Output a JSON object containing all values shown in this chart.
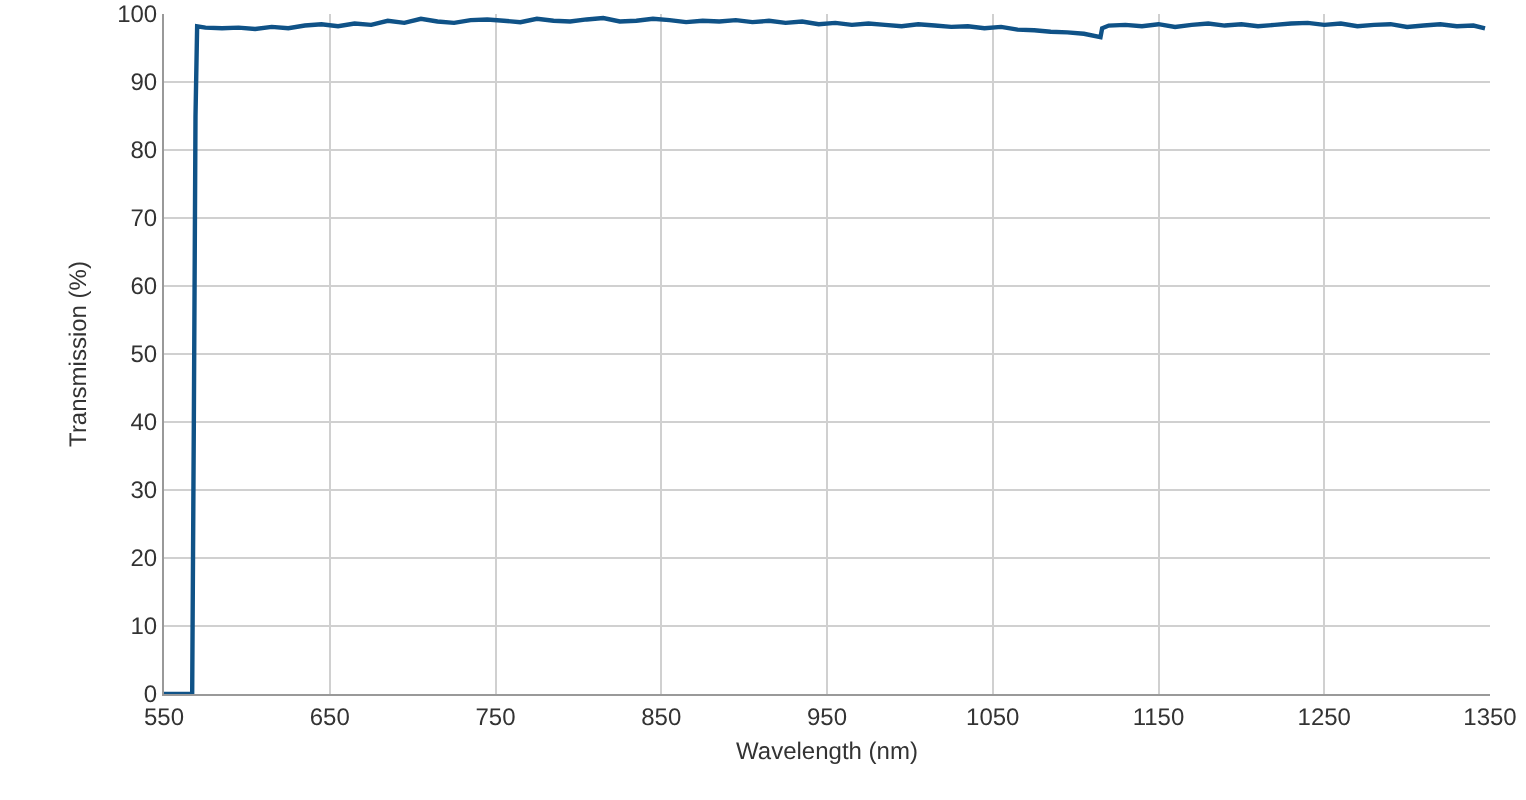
{
  "chart_data": {
    "type": "line",
    "xlabel": "Wavelength (nm)",
    "ylabel": "Transmission (%)",
    "x": [
      550,
      567,
      568,
      569,
      570,
      575,
      585,
      595,
      605,
      615,
      625,
      635,
      645,
      655,
      665,
      675,
      685,
      695,
      705,
      715,
      725,
      735,
      745,
      755,
      765,
      775,
      785,
      795,
      805,
      815,
      825,
      835,
      845,
      855,
      865,
      875,
      885,
      895,
      905,
      915,
      925,
      935,
      945,
      955,
      965,
      975,
      985,
      995,
      1005,
      1015,
      1025,
      1035,
      1045,
      1055,
      1065,
      1075,
      1085,
      1095,
      1105,
      1115,
      1116,
      1120,
      1130,
      1140,
      1150,
      1160,
      1170,
      1180,
      1190,
      1200,
      1210,
      1220,
      1230,
      1240,
      1250,
      1260,
      1270,
      1280,
      1290,
      1300,
      1310,
      1320,
      1330,
      1340,
      1347
    ],
    "series": [
      {
        "color": "#0f5287",
        "values": [
          0,
          0,
          40,
          85,
          98.2,
          98,
          97.9,
          98,
          97.8,
          98.1,
          97.9,
          98.3,
          98.5,
          98.2,
          98.6,
          98.4,
          99,
          98.7,
          99.3,
          98.9,
          98.7,
          99.1,
          99.2,
          99,
          98.8,
          99.3,
          99,
          98.9,
          99.2,
          99.4,
          98.9,
          99,
          99.3,
          99.1,
          98.8,
          99,
          98.9,
          99.1,
          98.8,
          99,
          98.7,
          98.9,
          98.5,
          98.7,
          98.4,
          98.6,
          98.4,
          98.2,
          98.5,
          98.3,
          98.1,
          98.2,
          97.9,
          98.1,
          97.7,
          97.6,
          97.4,
          97.3,
          97.1,
          96.6,
          97.9,
          98.3,
          98.4,
          98.2,
          98.5,
          98.1,
          98.4,
          98.6,
          98.3,
          98.5,
          98.2,
          98.4,
          98.6,
          98.7,
          98.4,
          98.6,
          98.2,
          98.4,
          98.5,
          98.1,
          98.3,
          98.5,
          98.2,
          98.3,
          97.9
        ]
      }
    ],
    "xlim": [
      550,
      1350
    ],
    "xticks": [
      550,
      650,
      750,
      850,
      950,
      1050,
      1150,
      1250,
      1350
    ],
    "ylim": [
      0,
      100
    ],
    "yticks": [
      0,
      10,
      20,
      30,
      40,
      50,
      60,
      70,
      80,
      90,
      100
    ],
    "grid": true,
    "marker": "none",
    "line_style": "solid"
  }
}
